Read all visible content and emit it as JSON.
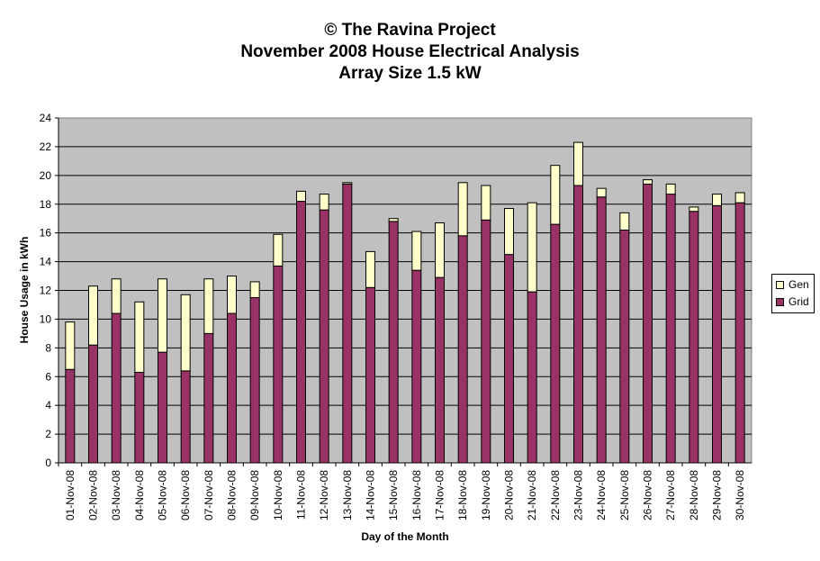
{
  "chart_data": {
    "type": "bar",
    "stacked": true,
    "title_lines": [
      "© The Ravina Project",
      "November 2008 House Electrical Analysis",
      "Array Size 1.5 kW"
    ],
    "xlabel": "Day of the Month",
    "ylabel": "House Usage in kWh",
    "ylim": [
      0,
      24
    ],
    "yticks": [
      0,
      2,
      4,
      6,
      8,
      10,
      12,
      14,
      16,
      18,
      20,
      22,
      24
    ],
    "grid": true,
    "legend_position": "right",
    "categories": [
      "01-Nov-08",
      "02-Nov-08",
      "03-Nov-08",
      "04-Nov-08",
      "05-Nov-08",
      "06-Nov-08",
      "07-Nov-08",
      "08-Nov-08",
      "09-Nov-08",
      "10-Nov-08",
      "11-Nov-08",
      "12-Nov-08",
      "13-Nov-08",
      "14-Nov-08",
      "15-Nov-08",
      "16-Nov-08",
      "17-Nov-08",
      "18-Nov-08",
      "19-Nov-08",
      "20-Nov-08",
      "21-Nov-08",
      "22-Nov-08",
      "23-Nov-08",
      "24-Nov-08",
      "25-Nov-08",
      "26-Nov-08",
      "27-Nov-08",
      "28-Nov-08",
      "29-Nov-08",
      "30-Nov-08"
    ],
    "series": [
      {
        "name": "Grid",
        "color": "#993366",
        "values": [
          6.5,
          8.2,
          10.4,
          6.3,
          7.7,
          6.4,
          9.0,
          10.4,
          11.5,
          13.7,
          18.2,
          17.6,
          19.4,
          12.2,
          16.8,
          13.4,
          12.9,
          15.8,
          16.9,
          14.5,
          11.9,
          16.6,
          19.3,
          18.5,
          16.2,
          19.4,
          18.7,
          17.5,
          17.9,
          18.1
        ]
      },
      {
        "name": "Gen",
        "color": "#FFFFCC",
        "values": [
          3.3,
          4.1,
          2.4,
          4.9,
          5.1,
          5.3,
          3.8,
          2.6,
          1.1,
          2.2,
          0.7,
          1.1,
          0.1,
          2.5,
          0.2,
          2.7,
          3.8,
          3.7,
          2.4,
          3.2,
          6.2,
          4.1,
          3.0,
          0.6,
          1.2,
          0.3,
          0.7,
          0.3,
          0.8,
          0.7
        ]
      }
    ]
  },
  "colors": {
    "plot_background": "#C0C0C0",
    "grid_line": "#000000"
  }
}
